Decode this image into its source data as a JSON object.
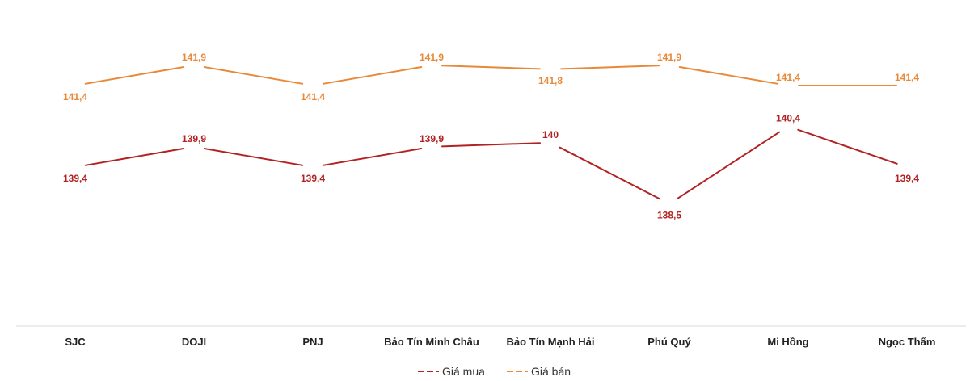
{
  "chart_data": {
    "type": "line",
    "categories": [
      "SJC",
      "DOJI",
      "PNJ",
      "Bảo Tín Minh Châu",
      "Bảo Tín Mạnh Hải",
      "Phú Quý",
      "Mi Hồng",
      "Ngọc Thẩm"
    ],
    "series": [
      {
        "name": "Giá mua",
        "color": "#B22222",
        "values": [
          139.4,
          139.9,
          139.4,
          139.9,
          140,
          138.5,
          140.4,
          139.4
        ],
        "labels": [
          "139,4",
          "139,9",
          "139,4",
          "139,9",
          "140",
          "138,5",
          "140,4",
          "139,4"
        ]
      },
      {
        "name": "Giá bán",
        "color": "#E8893A",
        "values": [
          141.4,
          141.9,
          141.4,
          141.9,
          141.8,
          141.9,
          141.4,
          141.4
        ],
        "labels": [
          "141,4",
          "141,9",
          "141,4",
          "141,9",
          "141,8",
          "141,9",
          "141,4",
          "141,4"
        ]
      }
    ],
    "ylim": [
      135.5,
      143.5
    ],
    "grid": false,
    "legend": "bottom-center",
    "title": "",
    "xlabel": "",
    "ylabel": ""
  }
}
